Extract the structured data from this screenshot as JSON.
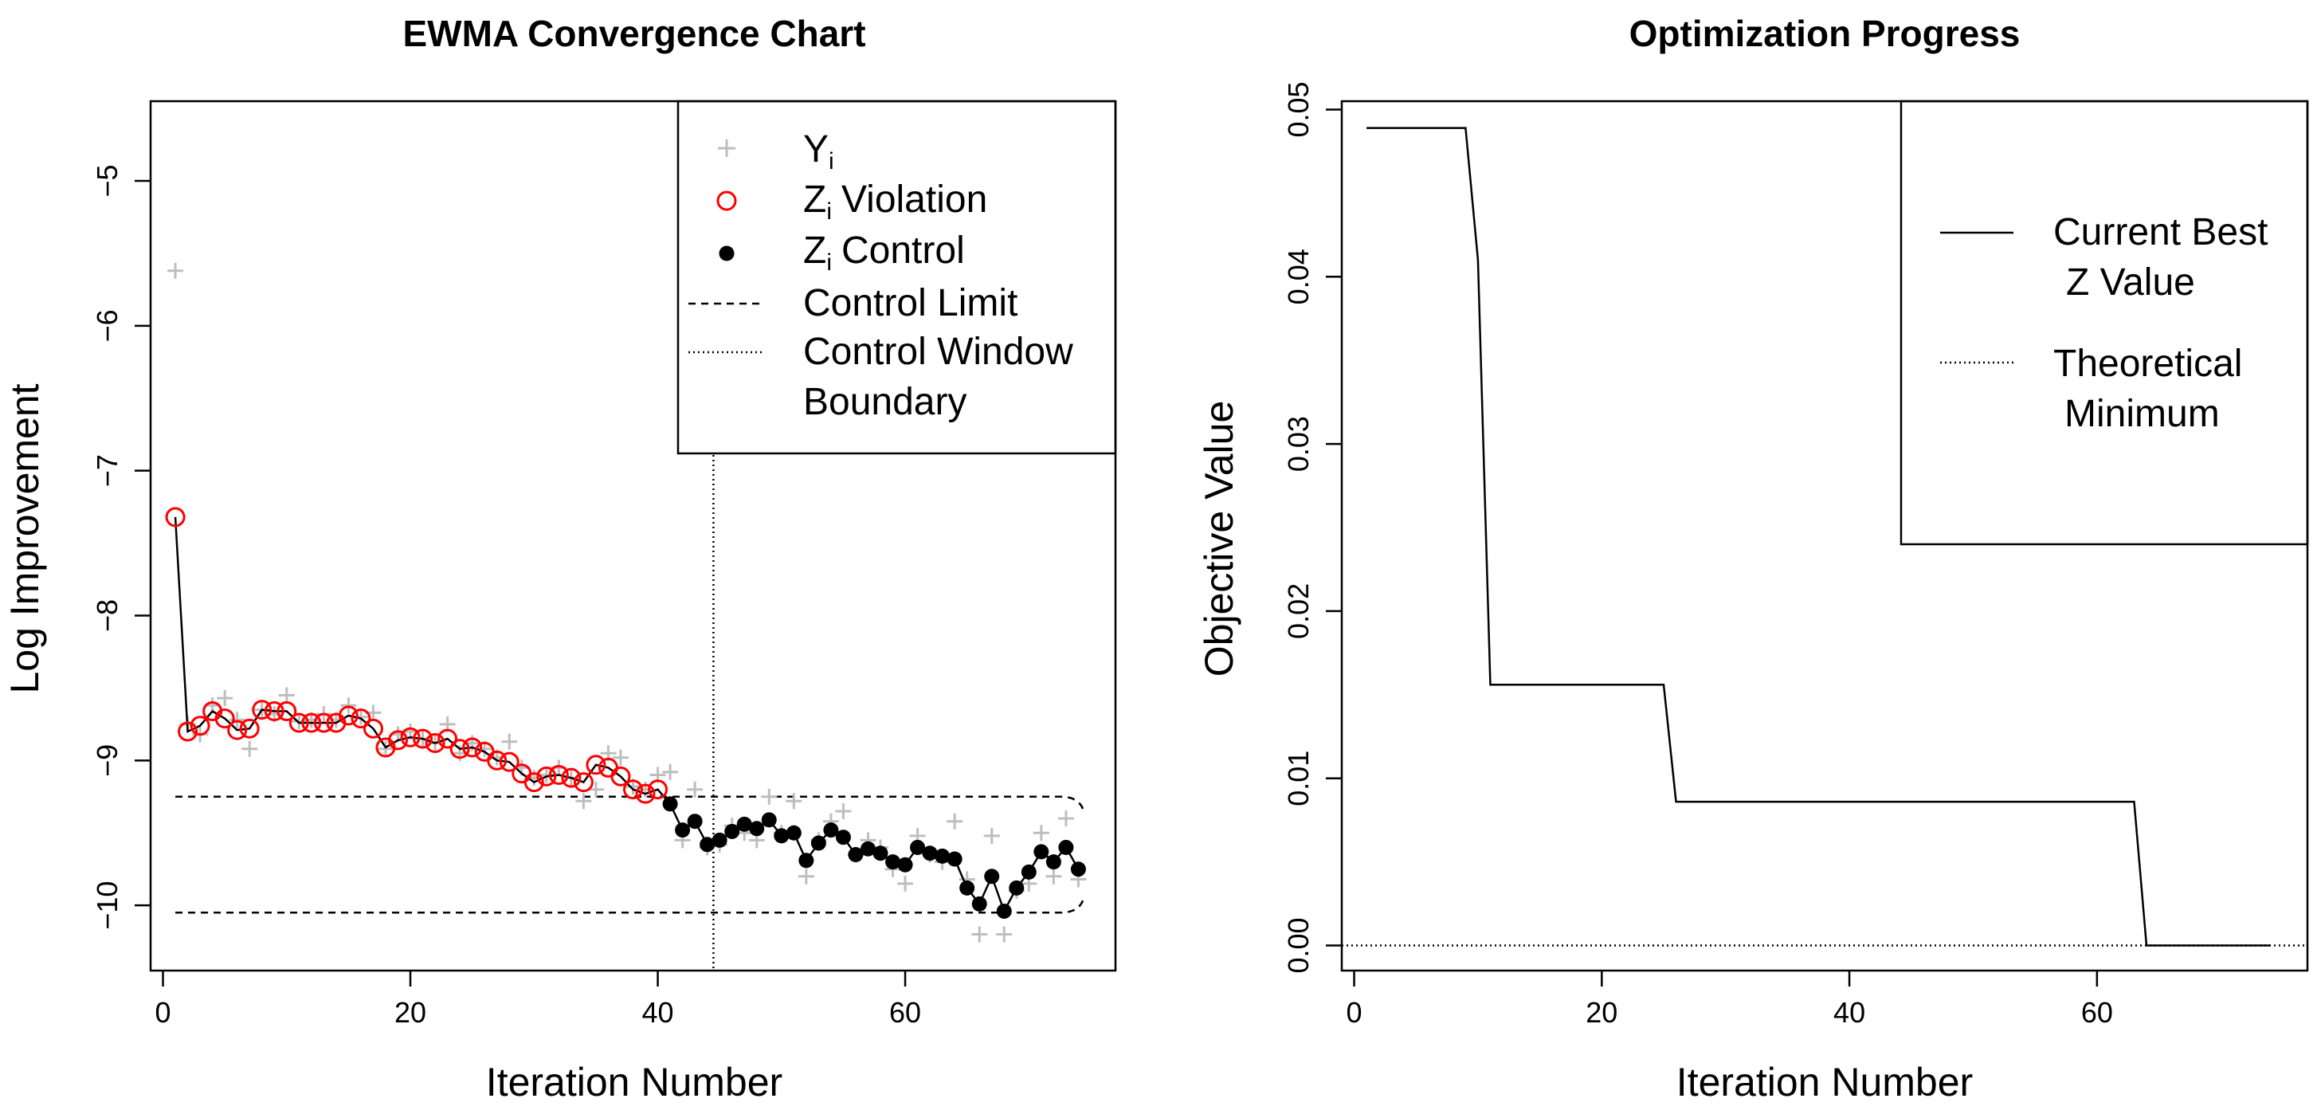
{
  "chart_data": [
    {
      "type": "scatter",
      "title": "EWMA Convergence Chart",
      "xlabel": "Iteration Number",
      "ylabel": "Log Improvement",
      "xlim": [
        -1,
        77
      ],
      "ylim": [
        -10.45,
        -4.45
      ],
      "x_ticks": [
        0,
        20,
        40,
        60
      ],
      "y_ticks": [
        -5,
        -6,
        -7,
        -8,
        -9,
        -10
      ],
      "legend_position": "top-right",
      "legend": {
        "yi_main": "Y",
        "yi_sub": "i",
        "violation_main": "Z",
        "violation_sub": "i",
        "violation_text": "Violation",
        "control_main": "Z",
        "control_sub": "i",
        "control_text": "Control",
        "control_limit": "Control Limit",
        "window_line1": "Control Window",
        "window_line2": "Boundary"
      },
      "control_window_x": 44.5,
      "control_limits": {
        "upper": -9.25,
        "lower": -10.05,
        "x_start": 1,
        "x_end": 74
      },
      "series": [
        {
          "name": "Yi",
          "x": [
            1,
            2,
            3,
            4,
            5,
            6,
            7,
            8,
            9,
            10,
            11,
            12,
            13,
            14,
            15,
            16,
            17,
            18,
            19,
            20,
            21,
            22,
            23,
            24,
            25,
            26,
            27,
            28,
            29,
            30,
            31,
            32,
            33,
            34,
            35,
            36,
            37,
            38,
            39,
            40,
            41,
            42,
            43,
            44,
            45,
            46,
            47,
            48,
            49,
            50,
            51,
            52,
            53,
            54,
            55,
            56,
            57,
            58,
            59,
            60,
            61,
            62,
            63,
            64,
            65,
            66,
            67,
            68,
            69,
            70,
            71,
            72,
            73,
            74
          ],
          "y": [
            -5.62,
            -8.75,
            -8.82,
            -8.62,
            -8.57,
            -8.72,
            -8.92,
            -8.65,
            -8.68,
            -8.55,
            -8.73,
            -8.72,
            -8.68,
            -8.72,
            -8.62,
            -8.7,
            -8.67,
            -8.92,
            -8.82,
            -8.8,
            -8.85,
            -8.88,
            -8.75,
            -8.95,
            -8.88,
            -8.92,
            -8.98,
            -8.87,
            -9.05,
            -9.12,
            -9.1,
            -9.05,
            -9.12,
            -9.28,
            -9.2,
            -8.95,
            -8.98,
            -9.18,
            -9.2,
            -9.1,
            -9.08,
            -9.55,
            -9.2,
            -9.6,
            -9.58,
            -9.45,
            -9.5,
            -9.55,
            -9.25,
            -9.5,
            -9.28,
            -9.8,
            -9.55,
            -9.42,
            -9.35,
            -9.65,
            -9.55,
            -9.6,
            -9.75,
            -9.85,
            -9.52,
            -9.65,
            -9.7,
            -9.42,
            -9.82,
            -10.2,
            -9.52,
            -10.2,
            -9.9,
            -9.85,
            -9.5,
            -9.8,
            -9.4,
            -9.82
          ]
        },
        {
          "name": "Zi Violation",
          "x": [
            1,
            2,
            3,
            4,
            5,
            6,
            7,
            8,
            9,
            10,
            11,
            12,
            13,
            14,
            15,
            16,
            17,
            18,
            19,
            20,
            21,
            22,
            23,
            24,
            25,
            26,
            27,
            28,
            29,
            30,
            31,
            32,
            33,
            34,
            35,
            36,
            37,
            38,
            39,
            40
          ],
          "y": [
            -7.32,
            -8.8,
            -8.76,
            -8.66,
            -8.71,
            -8.79,
            -8.78,
            -8.65,
            -8.66,
            -8.66,
            -8.74,
            -8.74,
            -8.74,
            -8.74,
            -8.69,
            -8.71,
            -8.78,
            -8.91,
            -8.86,
            -8.84,
            -8.85,
            -8.88,
            -8.85,
            -8.92,
            -8.91,
            -8.94,
            -9.0,
            -9.01,
            -9.09,
            -9.15,
            -9.11,
            -9.1,
            -9.12,
            -9.15,
            -9.03,
            -9.05,
            -9.11,
            -9.2,
            -9.23,
            -9.2
          ]
        },
        {
          "name": "Zi Control",
          "x": [
            41,
            42,
            43,
            44,
            45,
            46,
            47,
            48,
            49,
            50,
            51,
            52,
            53,
            54,
            55,
            56,
            57,
            58,
            59,
            60,
            61,
            62,
            63,
            64,
            65,
            66,
            67,
            68,
            69,
            70,
            71,
            72,
            73,
            74
          ],
          "y": [
            -9.3,
            -9.48,
            -9.42,
            -9.58,
            -9.55,
            -9.49,
            -9.44,
            -9.47,
            -9.41,
            -9.52,
            -9.5,
            -9.69,
            -9.57,
            -9.48,
            -9.53,
            -9.65,
            -9.61,
            -9.64,
            -9.7,
            -9.72,
            -9.6,
            -9.64,
            -9.66,
            -9.68,
            -9.88,
            -9.99,
            -9.8,
            -10.04,
            -9.88,
            -9.77,
            -9.63,
            -9.7,
            -9.6,
            -9.75
          ]
        }
      ]
    },
    {
      "type": "line",
      "title": "Optimization Progress",
      "xlabel": "Iteration Number",
      "ylabel": "Objective Value",
      "xlim": [
        -1,
        77
      ],
      "ylim": [
        -0.0015,
        0.0505
      ],
      "x_ticks": [
        0,
        20,
        40,
        60
      ],
      "y_ticks": [
        0.0,
        0.01,
        0.02,
        0.03,
        0.04,
        0.05
      ],
      "y_tick_labels": [
        "0.00",
        "0.01",
        "0.02",
        "0.03",
        "0.04",
        "0.05"
      ],
      "legend_position": "top-right",
      "legend": {
        "best_line1": "Current Best",
        "best_line2": "Z Value",
        "theory_line1": "Theoretical",
        "theory_line2": "Minimum"
      },
      "theoretical_minimum": 0.0,
      "series": [
        {
          "name": "Current Best Z Value",
          "x": [
            1,
            9,
            10,
            11,
            25,
            26,
            63,
            64,
            74
          ],
          "y": [
            0.0489,
            0.0489,
            0.041,
            0.0156,
            0.0156,
            0.0086,
            0.0086,
            0.0,
            0.0
          ]
        }
      ]
    }
  ]
}
